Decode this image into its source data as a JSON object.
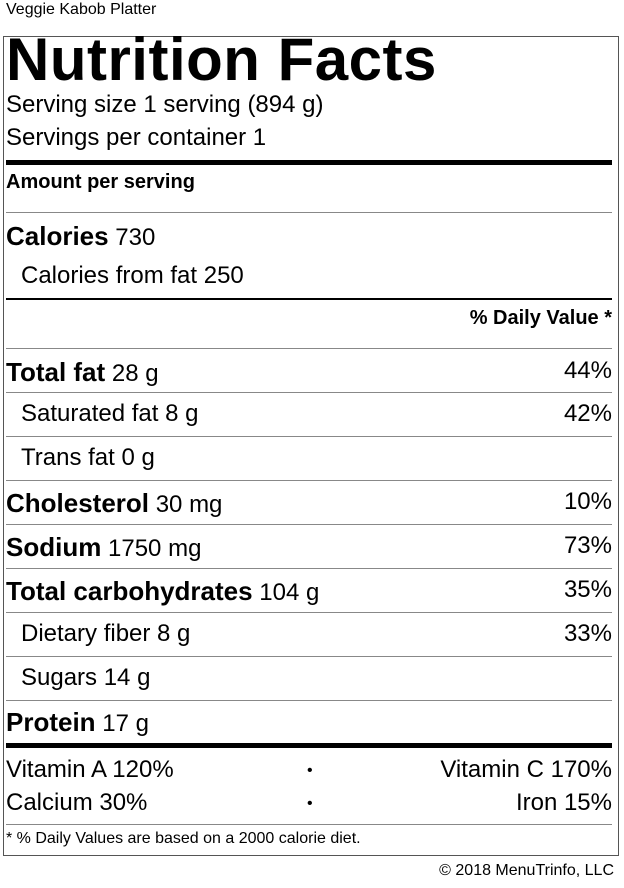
{
  "title": "Veggie Kabob Platter",
  "heading": "Nutrition Facts",
  "serving_size": "Serving size 1 serving (894 g)",
  "servings_per_container": "Servings per container 1",
  "amount_per_serving": "Amount per serving",
  "calories": {
    "label": "Calories",
    "value": "730"
  },
  "calories_from_fat": "Calories from fat 250",
  "daily_value_header": "% Daily Value *",
  "nutrients": {
    "total_fat": {
      "label": "Total fat",
      "amount": "28 g",
      "dv": "44%"
    },
    "saturated_fat": {
      "label": "Saturated fat 8 g",
      "dv": "42%"
    },
    "trans_fat": {
      "label": "Trans fat 0 g"
    },
    "cholesterol": {
      "label": "Cholesterol",
      "amount": "30 mg",
      "dv": "10%"
    },
    "sodium": {
      "label": "Sodium",
      "amount": "1750 mg",
      "dv": "73%"
    },
    "total_carbs": {
      "label": "Total carbohydrates",
      "amount": "104 g",
      "dv": "35%"
    },
    "dietary_fiber": {
      "label": "Dietary fiber 8 g",
      "dv": "33%"
    },
    "sugars": {
      "label": "Sugars 14 g"
    },
    "protein": {
      "label": "Protein",
      "amount": "17 g"
    }
  },
  "vitamins": {
    "vitamin_a": "Vitamin A 120%",
    "vitamin_c": "Vitamin C 170%",
    "calcium": "Calcium 30%",
    "iron": "Iron 15%",
    "bullet": "•"
  },
  "footnote": "* % Daily Values are based on a 2000 calorie diet.",
  "copyright": "© 2018 MenuTrinfo, LLC"
}
